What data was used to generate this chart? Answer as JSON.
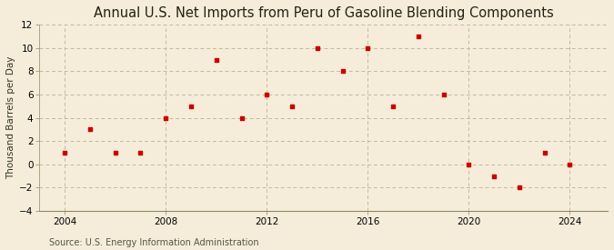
{
  "title": "Annual U.S. Net Imports from Peru of Gasoline Blending Components",
  "ylabel": "Thousand Barrels per Day",
  "source": "Source: U.S. Energy Information Administration",
  "years": [
    2004,
    2005,
    2006,
    2007,
    2008,
    2009,
    2010,
    2011,
    2012,
    2013,
    2014,
    2015,
    2016,
    2017,
    2018,
    2019,
    2020,
    2021,
    2022,
    2023,
    2024
  ],
  "values": [
    1,
    3,
    1,
    1,
    4,
    5,
    9,
    4,
    6,
    5,
    10,
    8,
    10,
    5,
    11,
    6,
    0,
    -1,
    -2,
    1,
    0
  ],
  "marker_color": "#cc0000",
  "bg_color": "#f5edda",
  "grid_color": "#c8b89a",
  "ylim": [
    -4,
    12
  ],
  "yticks": [
    -4,
    -2,
    0,
    2,
    4,
    6,
    8,
    10,
    12
  ],
  "xticks": [
    2004,
    2008,
    2012,
    2016,
    2020,
    2024
  ],
  "xlim": [
    2003,
    2025.5
  ],
  "title_fontsize": 10.5,
  "label_fontsize": 7.5,
  "tick_fontsize": 7.5,
  "source_fontsize": 7
}
